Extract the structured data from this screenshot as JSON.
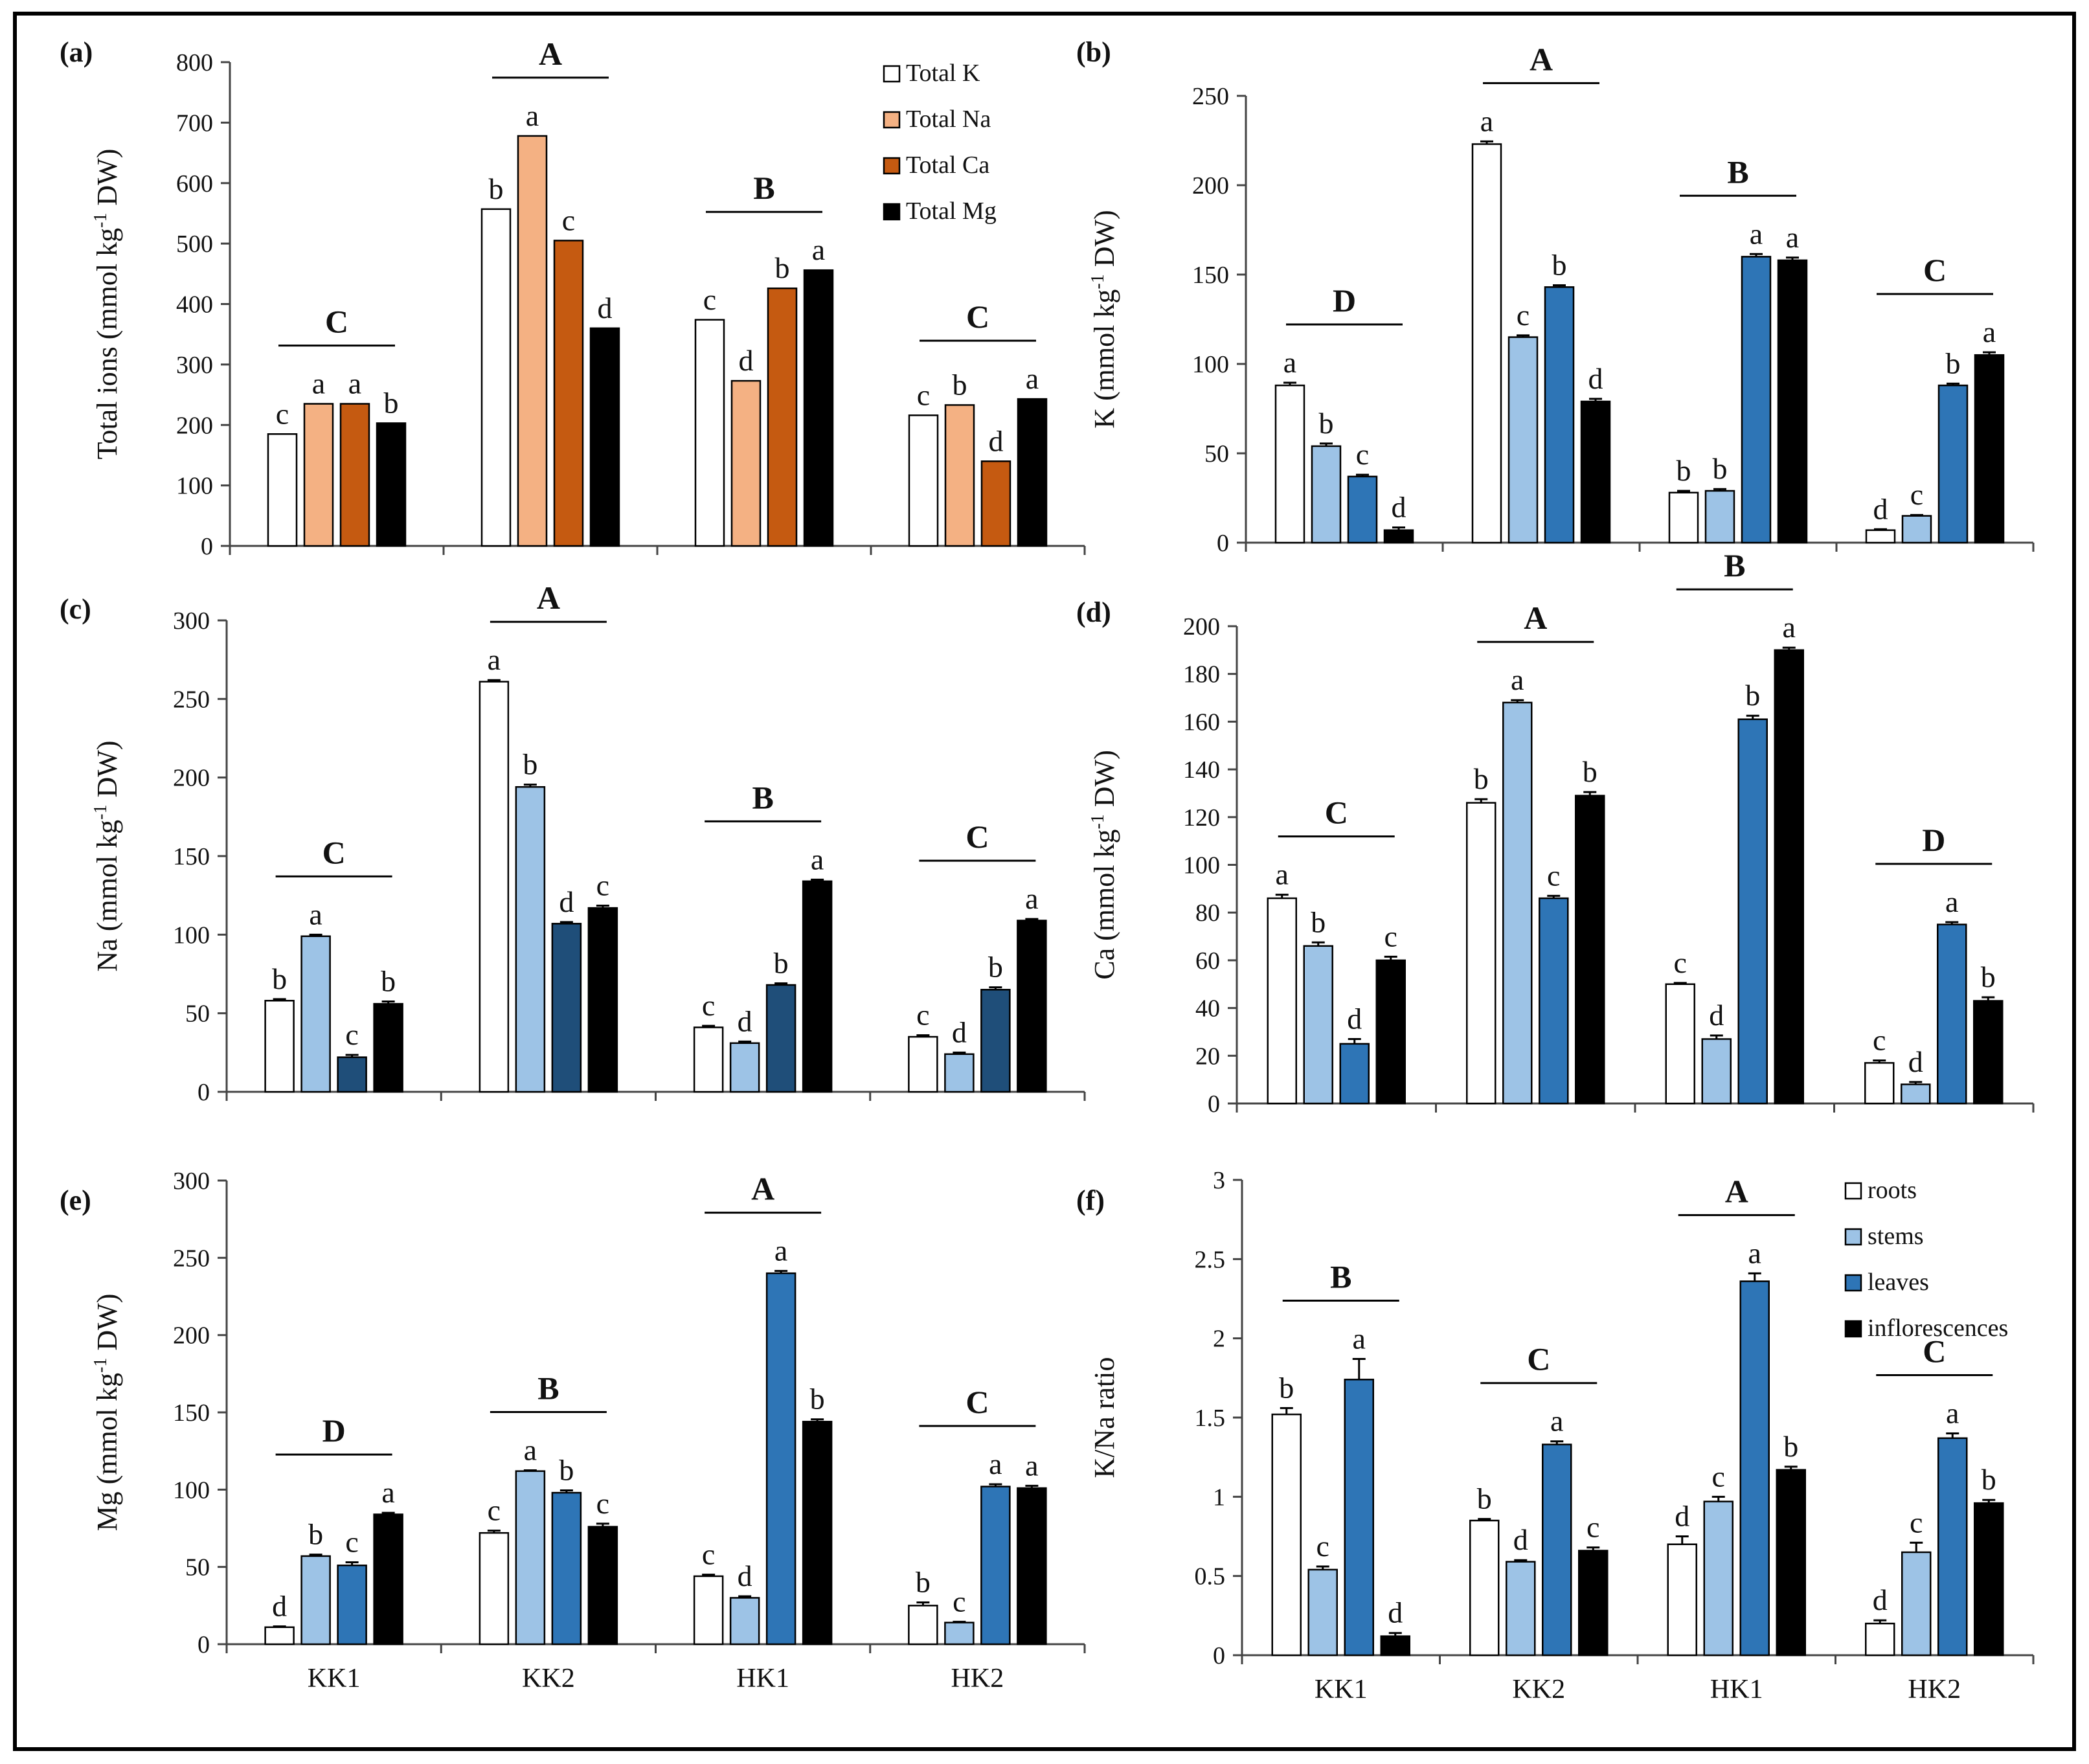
{
  "chart_data": [
    {
      "panel": "(a)",
      "type": "bar",
      "ylabel": "Total ions (mmol kg-1 DW)",
      "ylabel_parts": [
        "Total ions (mmol kg",
        "-1",
        " DW)"
      ],
      "ylim": [
        0,
        800
      ],
      "yticks": [
        0,
        100,
        200,
        300,
        400,
        500,
        600,
        700,
        800
      ],
      "categories": [
        "KK1",
        "KK2",
        "HK1",
        "HK2"
      ],
      "series": [
        {
          "name": "Total K",
          "color": "#ffffff",
          "values": [
            185,
            557,
            374,
            216
          ]
        },
        {
          "name": "Total Na",
          "color": "#f4b183",
          "values": [
            235,
            678,
            273,
            233
          ]
        },
        {
          "name": "Total Ca",
          "color": "#c55a11",
          "values": [
            235,
            505,
            426,
            140
          ]
        },
        {
          "name": "Total Mg",
          "color": "#000000",
          "values": [
            203,
            360,
            456,
            243
          ]
        }
      ],
      "errors": [
        [
          0,
          0,
          0,
          0
        ],
        [
          0,
          0,
          0,
          0
        ],
        [
          0,
          0,
          0,
          0
        ],
        [
          0,
          0,
          0,
          0
        ]
      ],
      "letters": [
        [
          "c",
          "a",
          "a",
          "b"
        ],
        [
          "b",
          "a",
          "c",
          "d"
        ],
        [
          "c",
          "d",
          "b",
          "a"
        ],
        [
          "c",
          "b",
          "d",
          "a"
        ]
      ],
      "group_letters": [
        "C",
        "A",
        "B",
        "C"
      ],
      "legend": "top-right",
      "grid": false
    },
    {
      "panel": "(b)",
      "type": "bar",
      "ylabel": "K (mmol kg-1 DW)",
      "ylabel_parts": [
        "K (mmol kg",
        "-1",
        " DW)"
      ],
      "ylim": [
        0,
        250
      ],
      "yticks": [
        0,
        50,
        100,
        150,
        200,
        250
      ],
      "categories": [
        "KK1",
        "KK2",
        "HK1",
        "HK2"
      ],
      "series": [
        {
          "name": "roots",
          "color": "#ffffff",
          "values": [
            88,
            223,
            28,
            7
          ]
        },
        {
          "name": "stems",
          "color": "#9dc3e6",
          "values": [
            54,
            115,
            29,
            15
          ]
        },
        {
          "name": "leaves",
          "color": "#2e75b6",
          "values": [
            37,
            143,
            160,
            88
          ]
        },
        {
          "name": "inflorescences",
          "color": "#000000",
          "values": [
            7,
            79,
            158,
            105
          ]
        }
      ],
      "errors": [
        [
          1.5,
          1.5,
          1,
          1.5
        ],
        [
          1.5,
          1,
          1,
          1.5
        ],
        [
          1,
          1,
          1.5,
          1.5
        ],
        [
          0.5,
          0.5,
          1,
          1.5
        ]
      ],
      "letters": [
        [
          "a",
          "b",
          "c",
          "d"
        ],
        [
          "a",
          "c",
          "b",
          "d"
        ],
        [
          "b",
          "b",
          "a",
          "a"
        ],
        [
          "d",
          "c",
          "b",
          "a"
        ]
      ],
      "group_letters": [
        "D",
        "A",
        "B",
        "C"
      ],
      "grid": false
    },
    {
      "panel": "(c)",
      "type": "bar",
      "ylabel": "Na (mmol kg-1 DW)",
      "ylabel_parts": [
        "Na (mmol kg",
        "-1",
        " DW)"
      ],
      "ylim": [
        0,
        300
      ],
      "yticks": [
        0,
        50,
        100,
        150,
        200,
        250,
        300
      ],
      "categories": [
        "KK1",
        "KK2",
        "HK1",
        "HK2"
      ],
      "series": [
        {
          "name": "roots",
          "color": "#ffffff",
          "values": [
            58,
            261,
            41,
            35
          ]
        },
        {
          "name": "stems",
          "color": "#9dc3e6",
          "values": [
            99,
            194,
            31,
            24
          ]
        },
        {
          "name": "leaves",
          "color": "#1f4e79",
          "values": [
            22,
            107,
            68,
            65
          ]
        },
        {
          "name": "inflorescences",
          "color": "#000000",
          "values": [
            56,
            117,
            134,
            109
          ]
        }
      ],
      "errors": [
        [
          1,
          1,
          1.5,
          1.5
        ],
        [
          1,
          1.5,
          1,
          1.5
        ],
        [
          1,
          1,
          1,
          1
        ],
        [
          1,
          1,
          1.5,
          1
        ]
      ],
      "letters": [
        [
          "b",
          "a",
          "c",
          "b"
        ],
        [
          "a",
          "b",
          "d",
          "c"
        ],
        [
          "c",
          "d",
          "b",
          "a"
        ],
        [
          "c",
          "d",
          "b",
          "a"
        ]
      ],
      "group_letters": [
        "C",
        "A",
        "B",
        "C"
      ],
      "grid": false
    },
    {
      "panel": "(d)",
      "type": "bar",
      "ylabel": "Ca (mmol kg-1 DW)",
      "ylabel_parts": [
        "Ca (mmol kg",
        "-1",
        " DW)"
      ],
      "ylim": [
        0,
        200
      ],
      "yticks": [
        0,
        20,
        40,
        60,
        80,
        100,
        120,
        140,
        160,
        180,
        200
      ],
      "categories": [
        "KK1",
        "KK2",
        "HK1",
        "HK2"
      ],
      "series": [
        {
          "name": "roots",
          "color": "#ffffff",
          "values": [
            86,
            126,
            50,
            17
          ]
        },
        {
          "name": "stems",
          "color": "#9dc3e6",
          "values": [
            66,
            168,
            27,
            8
          ]
        },
        {
          "name": "leaves",
          "color": "#2e75b6",
          "values": [
            25,
            86,
            161,
            75
          ]
        },
        {
          "name": "inflorescences",
          "color": "#000000",
          "values": [
            60,
            129,
            190,
            43
          ]
        }
      ],
      "errors": [
        [
          1.5,
          1.5,
          2,
          1.5
        ],
        [
          1.5,
          1,
          1,
          1.5
        ],
        [
          0.5,
          1.5,
          1.5,
          1
        ],
        [
          1,
          1,
          1,
          1.5
        ]
      ],
      "letters": [
        [
          "a",
          "b",
          "d",
          "c"
        ],
        [
          "b",
          "a",
          "c",
          "b"
        ],
        [
          "c",
          "d",
          "b",
          "a"
        ],
        [
          "c",
          "d",
          "a",
          "b"
        ]
      ],
      "group_letters": [
        "C",
        "A",
        "B",
        "D"
      ],
      "grid": false
    },
    {
      "panel": "(e)",
      "type": "bar",
      "ylabel": "Mg (mmol kg-1 DW)",
      "ylabel_parts": [
        "Mg (mmol kg",
        "-1",
        " DW)"
      ],
      "ylim": [
        0,
        300
      ],
      "yticks": [
        0,
        50,
        100,
        150,
        200,
        250,
        300
      ],
      "categories": [
        "KK1",
        "KK2",
        "HK1",
        "HK2"
      ],
      "series": [
        {
          "name": "roots",
          "color": "#ffffff",
          "values": [
            11,
            72,
            44,
            25
          ]
        },
        {
          "name": "stems",
          "color": "#9dc3e6",
          "values": [
            57,
            112,
            30,
            14
          ]
        },
        {
          "name": "leaves",
          "color": "#2e75b6",
          "values": [
            51,
            98,
            240,
            102
          ]
        },
        {
          "name": "inflorescences",
          "color": "#000000",
          "values": [
            84,
            76,
            144,
            101
          ]
        }
      ],
      "errors": [
        [
          0.5,
          1,
          2,
          1
        ],
        [
          1.5,
          0.5,
          1.5,
          2
        ],
        [
          1,
          1,
          1.5,
          1.5
        ],
        [
          2,
          0.5,
          1.5,
          1.5
        ]
      ],
      "letters": [
        [
          "d",
          "b",
          "c",
          "a"
        ],
        [
          "c",
          "a",
          "b",
          "c"
        ],
        [
          "c",
          "d",
          "a",
          "b"
        ],
        [
          "b",
          "c",
          "a",
          "a"
        ]
      ],
      "group_letters": [
        "D",
        "B",
        "A",
        "C"
      ],
      "grid": false
    },
    {
      "panel": "(f)",
      "type": "bar",
      "ylabel": "K/Na ratio",
      "ylim": [
        0,
        3
      ],
      "yticks": [
        "0",
        "0.5",
        "1",
        "1.5",
        "2",
        "2.5",
        "3"
      ],
      "categories": [
        "KK1",
        "KK2",
        "HK1",
        "HK2"
      ],
      "series": [
        {
          "name": "roots",
          "color": "#ffffff",
          "values": [
            1.52,
            0.85,
            0.7,
            0.2
          ]
        },
        {
          "name": "stems",
          "color": "#9dc3e6",
          "values": [
            0.54,
            0.59,
            0.97,
            0.65
          ]
        },
        {
          "name": "leaves",
          "color": "#2e75b6",
          "values": [
            1.74,
            1.33,
            2.36,
            1.37
          ]
        },
        {
          "name": "inflorescences",
          "color": "#000000",
          "values": [
            0.12,
            0.66,
            1.17,
            0.96
          ]
        }
      ],
      "errors": [
        [
          0.04,
          0.02,
          0.13,
          0.02
        ],
        [
          0.01,
          0.01,
          0.02,
          0.02
        ],
        [
          0.05,
          0.03,
          0.05,
          0.02
        ],
        [
          0.02,
          0.06,
          0.03,
          0.02
        ]
      ],
      "letters": [
        [
          "b",
          "c",
          "a",
          "d"
        ],
        [
          "b",
          "d",
          "a",
          "c"
        ],
        [
          "d",
          "c",
          "a",
          "b"
        ],
        [
          "d",
          "c",
          "a",
          "b"
        ]
      ],
      "group_letters": [
        "B",
        "C",
        "A",
        "C"
      ],
      "legend": "top-right",
      "grid": false
    }
  ]
}
